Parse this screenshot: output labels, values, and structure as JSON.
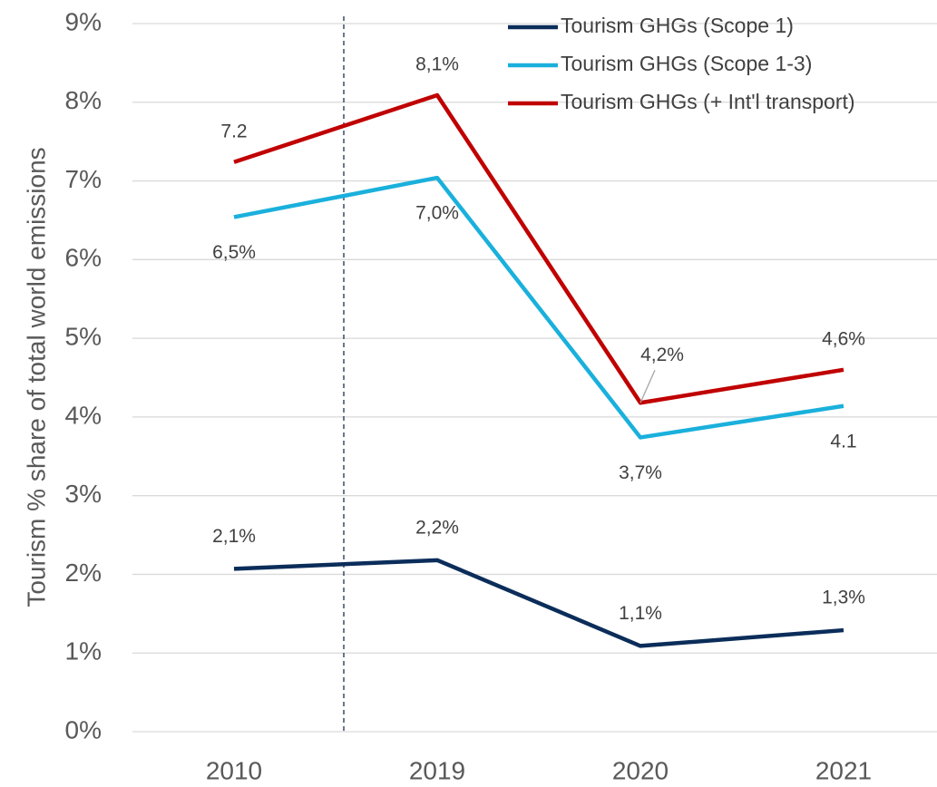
{
  "chart_data": {
    "type": "line",
    "y_label": "Tourism % share of total world emissions",
    "categories": [
      "2010",
      "2019",
      "2020",
      "2021"
    ],
    "series": [
      {
        "name": "Tourism GHGs (Scope 1)",
        "color": "#0b2d5a",
        "values": [
          2.07,
          2.18,
          1.09,
          1.29
        ],
        "value_labels": [
          "2,1%",
          "2,2%",
          "1,1%",
          "1,3%"
        ]
      },
      {
        "name": "Tourism GHGs (Scope 1-3)",
        "color": "#1ab0dc",
        "values": [
          6.54,
          7.04,
          3.74,
          4.14
        ],
        "value_labels": [
          "6,5%",
          "7,0%",
          "3,7%",
          "4.1"
        ]
      },
      {
        "name": "Tourism GHGs (+ Int'l transport)",
        "color": "#c00000",
        "values": [
          7.24,
          8.09,
          4.18,
          4.6
        ],
        "value_labels": [
          "7.2",
          "8,1%",
          "4,2%",
          "4,6%"
        ]
      }
    ],
    "ylim": [
      0,
      9
    ],
    "yticks": [
      {
        "value": 0,
        "label": "0%"
      },
      {
        "value": 1,
        "label": "1%"
      },
      {
        "value": 2,
        "label": "2%"
      },
      {
        "value": 3,
        "label": "3%"
      },
      {
        "value": 4,
        "label": "4%"
      },
      {
        "value": 5,
        "label": "5%"
      },
      {
        "value": 6,
        "label": "6%"
      },
      {
        "value": 7,
        "label": "7%"
      },
      {
        "value": 8,
        "label": "8%"
      },
      {
        "value": 9,
        "label": "9%"
      }
    ],
    "grid": true,
    "legend": "upper right"
  }
}
